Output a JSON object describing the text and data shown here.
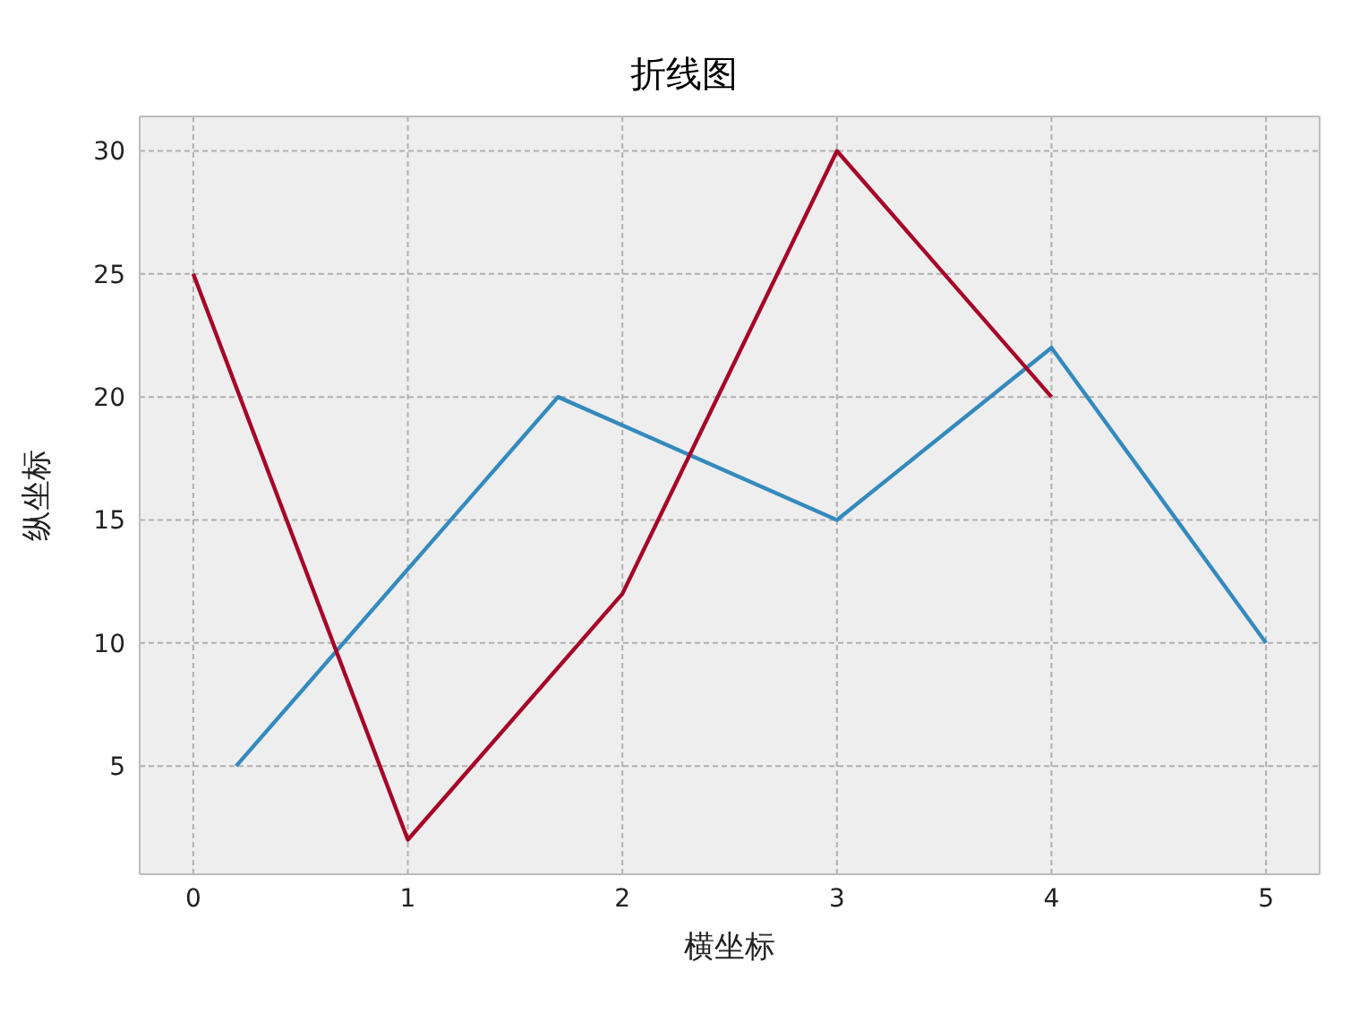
{
  "chart_data": {
    "type": "line",
    "title": "折线图",
    "xlabel": "横坐标",
    "ylabel": "纵坐标",
    "series": [
      {
        "color": "#348abd",
        "x": [
          0.2,
          1.7,
          3,
          4,
          5
        ],
        "values": [
          5,
          20,
          15,
          22,
          10
        ]
      },
      {
        "color": "#a60628",
        "x": [
          0,
          1,
          2,
          3,
          4
        ],
        "values": [
          25,
          2,
          12,
          30,
          20
        ]
      }
    ],
    "xlim": [
      -0.25,
      5.25
    ],
    "xticks": [
      0,
      1,
      2,
      3,
      4,
      5
    ],
    "ylim": [
      0.6,
      31.4
    ],
    "yticks": [
      5,
      10,
      15,
      20,
      25,
      30
    ],
    "grid": true,
    "marker": "none",
    "line_style": "solid"
  }
}
